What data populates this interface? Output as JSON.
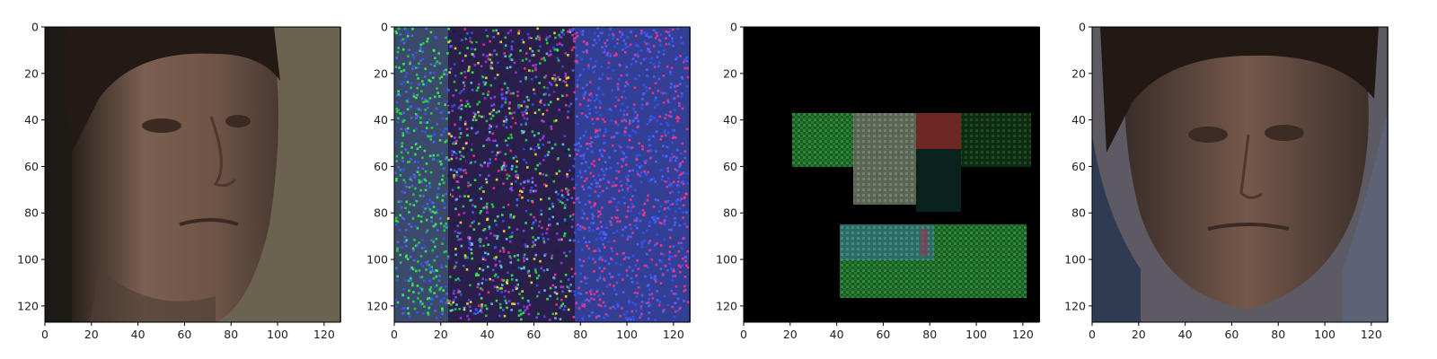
{
  "figure": {
    "panels": [
      {
        "name": "face-photo-left",
        "content": "photo"
      },
      {
        "name": "noise-map",
        "content": "noise"
      },
      {
        "name": "block-mask",
        "content": "blocks"
      },
      {
        "name": "face-photo-right",
        "content": "photo"
      }
    ],
    "axes": {
      "x_ticks": [
        "0",
        "20",
        "40",
        "60",
        "80",
        "100",
        "120"
      ],
      "y_ticks": [
        "0",
        "20",
        "40",
        "60",
        "80",
        "100",
        "120"
      ],
      "range": [
        0,
        127
      ]
    },
    "colors": {
      "axis": "#000000",
      "photo_bg_left": "#6b6350",
      "photo_bg_right": "#5d5a63",
      "noise_base": "#2a1f4a",
      "mask_bg": "#000000"
    }
  }
}
